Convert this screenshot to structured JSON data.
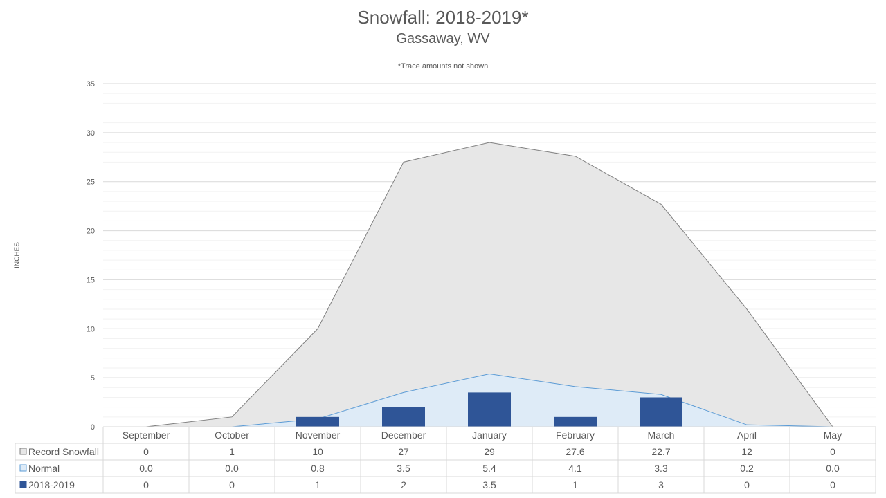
{
  "chart_data": {
    "type": "area",
    "title": "Snowfall: 2018-2019*",
    "subtitle": "Gassaway, WV",
    "note": "*Trace amounts not shown",
    "ylabel": "INCHES",
    "ylim": [
      0,
      35
    ],
    "yticks": [
      0,
      5,
      10,
      15,
      20,
      25,
      30,
      35
    ],
    "grid": true,
    "legend": "data-table",
    "categories": [
      "September",
      "October",
      "November",
      "December",
      "January",
      "February",
      "March",
      "April",
      "May"
    ],
    "series": [
      {
        "name": "Record Snowfall",
        "kind": "area",
        "fill": "#e7e7e7",
        "stroke": "#7f7f7f",
        "values": [
          0,
          1,
          10,
          27,
          29,
          27.6,
          22.7,
          12,
          0
        ],
        "labels": [
          "0",
          "1",
          "10",
          "27",
          "29",
          "27.6",
          "22.7",
          "12",
          "0"
        ]
      },
      {
        "name": "Normal",
        "kind": "area",
        "fill": "#deebf7",
        "stroke": "#5b9bd5",
        "values": [
          0.0,
          0.0,
          0.8,
          3.5,
          5.4,
          4.1,
          3.3,
          0.2,
          0.0
        ],
        "labels": [
          "0.0",
          "0.0",
          "0.8",
          "3.5",
          "5.4",
          "4.1",
          "3.3",
          "0.2",
          "0.0"
        ]
      },
      {
        "name": "2018-2019",
        "kind": "bar",
        "fill": "#2f5597",
        "stroke": "#2f5597",
        "values": [
          0,
          0,
          1,
          2,
          3.5,
          1,
          3,
          0,
          0
        ],
        "labels": [
          "0",
          "0",
          "1",
          "2",
          "3.5",
          "1",
          "3",
          "0",
          "0"
        ]
      }
    ]
  }
}
